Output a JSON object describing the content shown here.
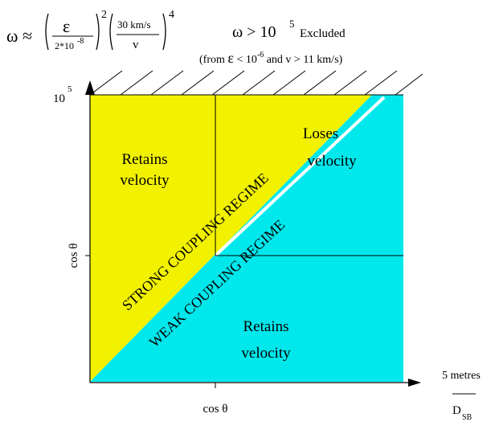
{
  "formula": {
    "lhs": "ω ≈",
    "eps_num": "ε",
    "eps_den": "2*10",
    "eps_den_exp": "-8",
    "exp2": "2",
    "v_num": "30 km/s",
    "v_den": "v",
    "exp4": "4"
  },
  "excluded": {
    "omega_gt": "ω > 10",
    "exp": "5",
    "word": "Excluded",
    "note_pre": "(from ",
    "note_eps": "ε",
    "note_lt": " < 10",
    "note_exp": "-6",
    "note_post": " and v > 11 km/s)"
  },
  "axes": {
    "y_top_tick": "10",
    "y_top_tick_exp": "5",
    "y_label": "cos θ",
    "x_tick_label": "cos θ",
    "x_unit_num": "5 metres",
    "x_unit_den": "D",
    "x_unit_den_sub": "SB"
  },
  "regions": {
    "top_left": [
      "Retains",
      "velocity"
    ],
    "top_right": [
      "Loses",
      "velocity"
    ],
    "bottom_right": [
      "Retains",
      "velocity"
    ],
    "strong_band": "STRONG COUPLING REGIME",
    "weak_band": "WEAK COUPLING REGIME"
  },
  "colors": {
    "yellow": "#f2f200",
    "cyan": "#00e8ec",
    "olive_yellow": "#d8d800"
  }
}
